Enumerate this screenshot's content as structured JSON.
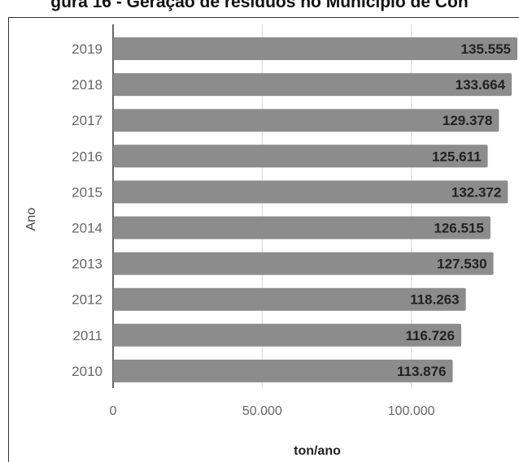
{
  "chart_data": {
    "type": "bar",
    "orientation": "horizontal",
    "title": "gura 16 - Geração de resíduos no Município de Con",
    "categories": [
      "2019",
      "2018",
      "2017",
      "2016",
      "2015",
      "2014",
      "2013",
      "2012",
      "2011",
      "2010"
    ],
    "values": [
      135.555,
      133.664,
      129.378,
      125.611,
      132.372,
      126.515,
      127.53,
      118.263,
      116.726,
      113.876
    ],
    "value_labels": [
      "135.555",
      "133.664",
      "129.378",
      "125.611",
      "132.372",
      "126.515",
      "127.530",
      "118.263",
      "116.726",
      "113.876"
    ],
    "x_ticks": [
      {
        "value": 0,
        "label": "0"
      },
      {
        "value": 50,
        "label": "50.000"
      },
      {
        "value": 100,
        "label": "100.000"
      }
    ],
    "xlim": [
      0,
      135.555
    ],
    "xlabel": "ton/ano",
    "ylabel": "Ano",
    "grid": true,
    "bar_color": "#8c8c8c"
  }
}
